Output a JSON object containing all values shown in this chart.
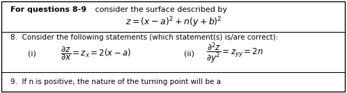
{
  "bg_color": "#ffffff",
  "border_color": "#000000",
  "line1_bold": "For questions 8-9",
  "line1_normal": " consider the surface described by",
  "formula_main": "$z=(x-a)^{2}+n(y+b)^{2}$",
  "stmt_i_formula": "$\\dfrac{\\partial z}{\\partial x}=z_x=2(x-a)$",
  "stmt_ii_formula": "$\\dfrac{\\partial^2 z}{\\partial y^2}=z_{yy}=2n$",
  "q8_text": "8.  Consider the following statements (which statement(s) is/are correct):",
  "stmt_i_label": "(i)",
  "stmt_ii_label": "(ii)",
  "q9_text": "9.  If n is positive, the nature of the turning point will be a"
}
